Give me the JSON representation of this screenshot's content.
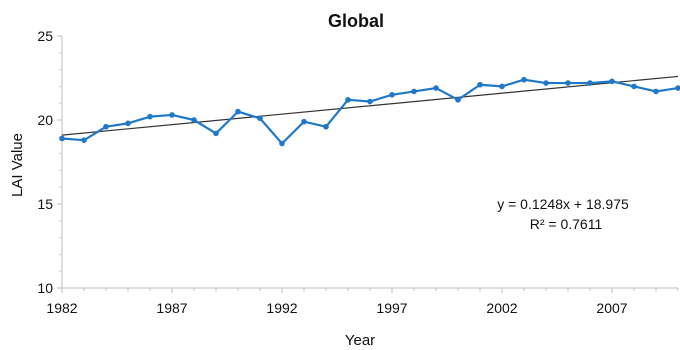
{
  "chart_data": {
    "type": "line",
    "title": "Global",
    "xlabel": "Year",
    "ylabel": "LAI Value",
    "xlim": [
      1982,
      2010
    ],
    "ylim": [
      10,
      25
    ],
    "x_ticks": [
      1982,
      1987,
      1992,
      1997,
      2002,
      2007
    ],
    "y_ticks": [
      10,
      15,
      20,
      25
    ],
    "grid": false,
    "legend": "none",
    "series": [
      {
        "color": "#1f78c8",
        "x": [
          1982,
          1983,
          1984,
          1985,
          1986,
          1987,
          1988,
          1989,
          1990,
          1991,
          1992,
          1993,
          1994,
          1995,
          1996,
          1997,
          1998,
          1999,
          2000,
          2001,
          2002,
          2003,
          2004,
          2005,
          2006,
          2007,
          2008,
          2009,
          2010
        ],
        "y": [
          18.9,
          18.8,
          19.6,
          19.8,
          20.2,
          20.3,
          20.0,
          19.2,
          20.5,
          20.1,
          18.6,
          19.9,
          19.6,
          21.2,
          21.1,
          21.5,
          21.7,
          21.9,
          21.2,
          22.1,
          22.0,
          22.4,
          22.2,
          22.2,
          22.2,
          22.3,
          22.0,
          21.7,
          21.9
        ]
      }
    ],
    "trendline": {
      "color": "#333333",
      "slope": 0.1248,
      "intercept": 18.975,
      "equation_text": "y = 0.1248x + 18.975",
      "r2_text": "R² = 0.7611"
    }
  }
}
